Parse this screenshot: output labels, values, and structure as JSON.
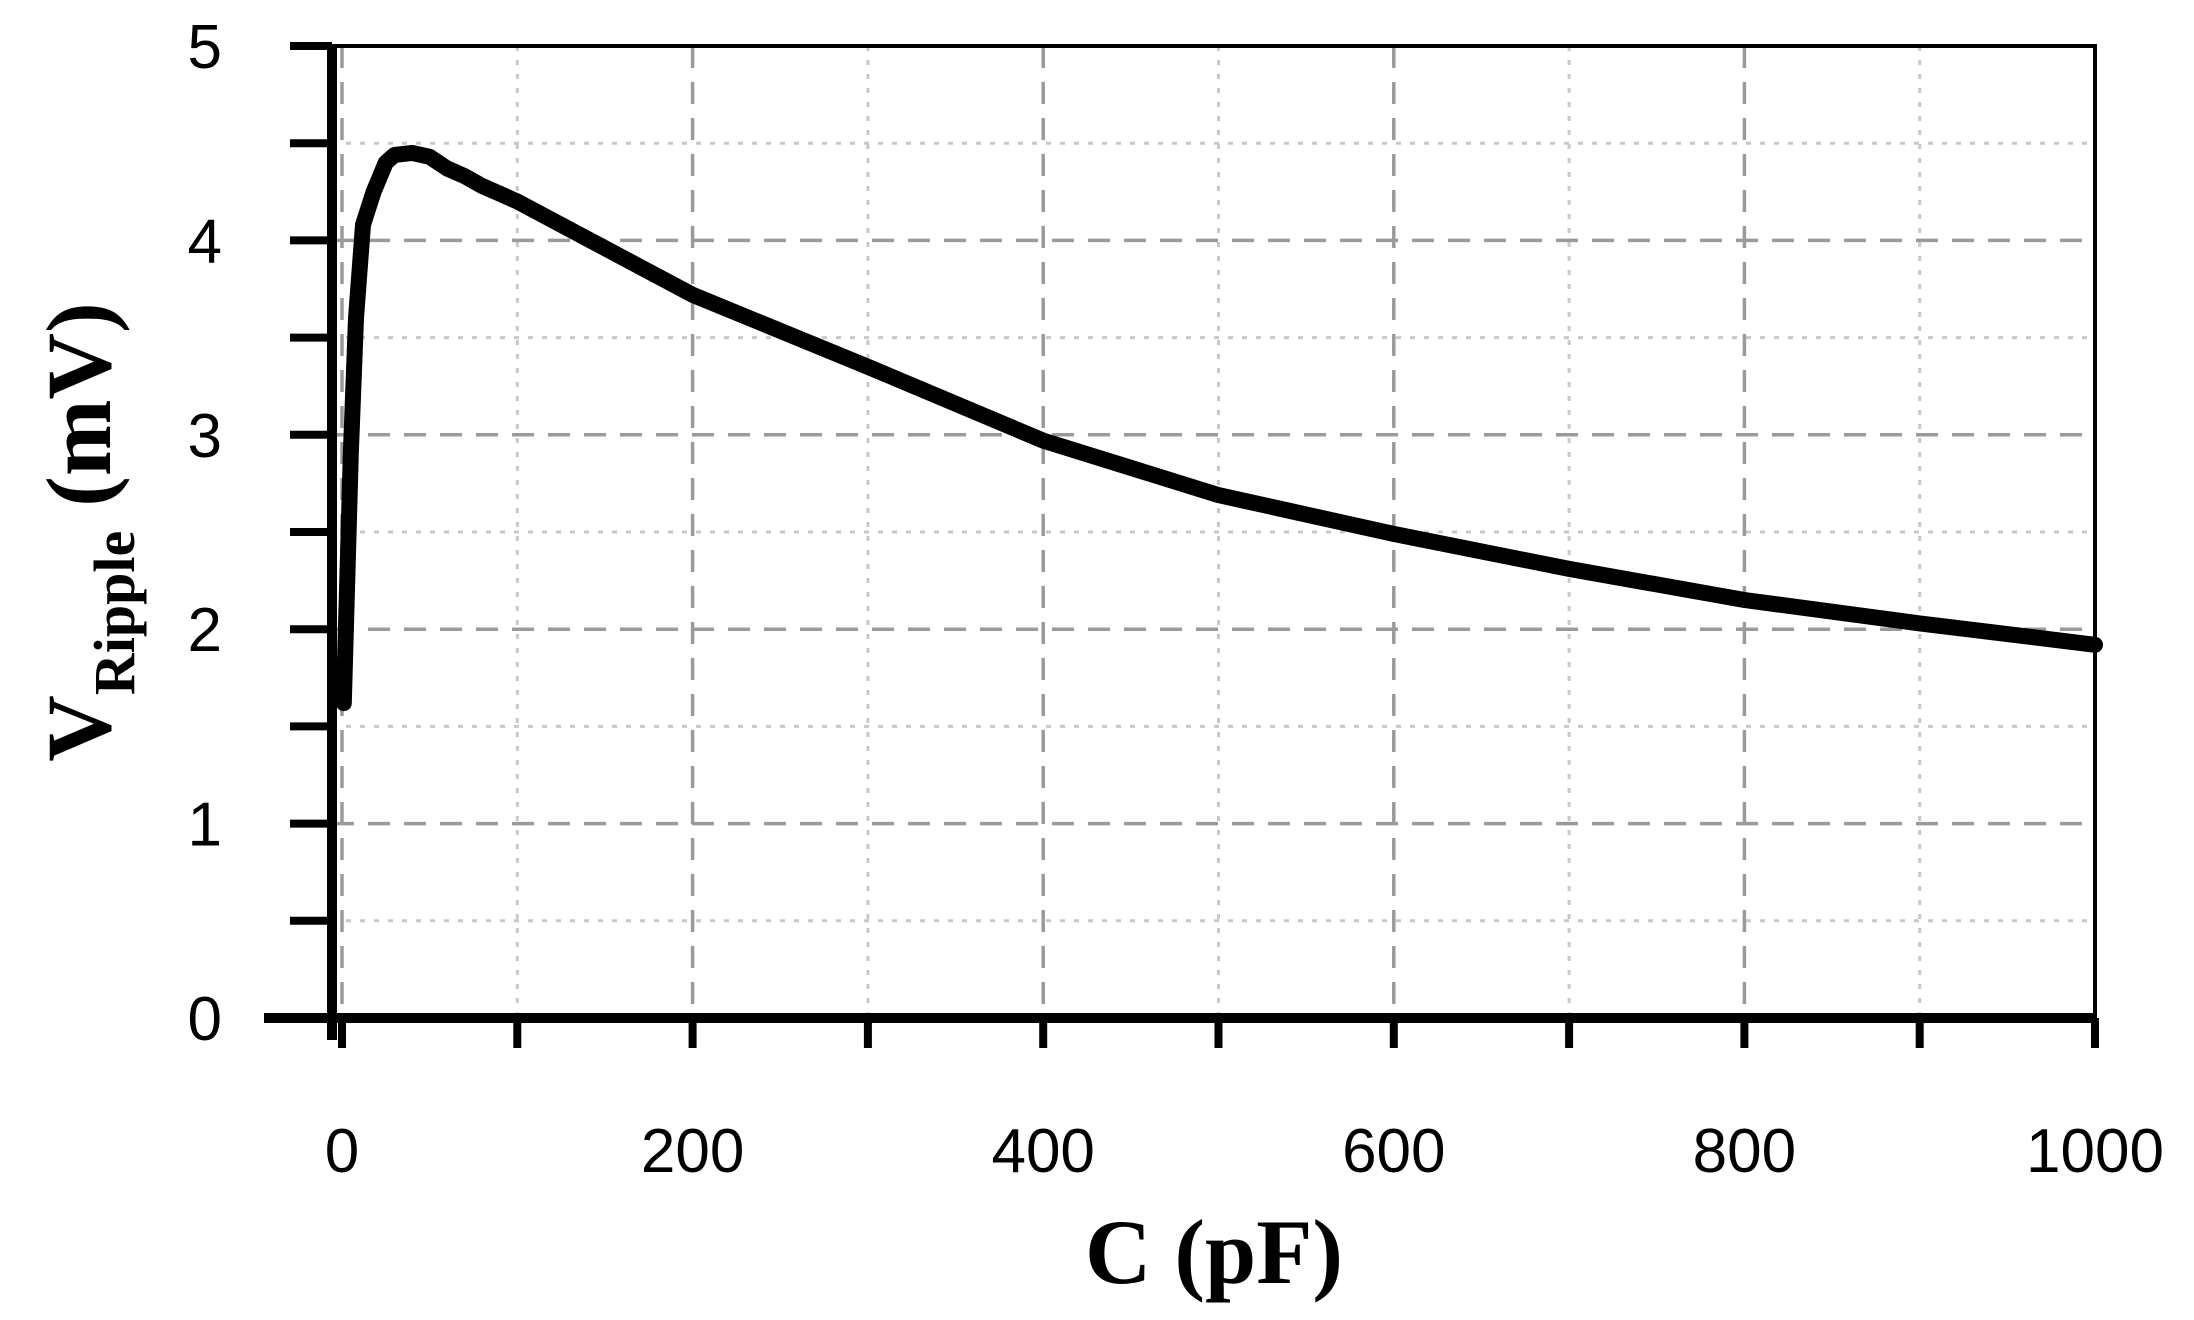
{
  "chart_data": {
    "type": "line",
    "xlabel": "C (pF)",
    "ylabel_main": "V",
    "ylabel_sub": "Ripple",
    "ylabel_unit": "(mV)",
    "xlim": [
      0,
      1000
    ],
    "ylim": [
      0,
      5
    ],
    "xticks": [
      0,
      200,
      400,
      600,
      800,
      1000
    ],
    "xtick_labels": [
      "0",
      "200",
      "400",
      "600",
      "800",
      "1000"
    ],
    "xminor": [
      100,
      300,
      500,
      700,
      900
    ],
    "yticks": [
      0,
      1,
      2,
      3,
      4,
      5
    ],
    "ytick_labels": [
      "0",
      "1",
      "2",
      "3",
      "4",
      "5"
    ],
    "yminor": [
      0.5,
      1.5,
      2.5,
      3.5,
      4.5
    ],
    "grid": true,
    "series": [
      {
        "color": "#000000",
        "x": [
          1,
          5,
          8,
          12,
          18,
          25,
          30,
          40,
          50,
          60,
          70,
          80,
          90,
          100,
          150,
          200,
          300,
          400,
          500,
          600,
          700,
          800,
          900,
          1000
        ],
        "y": [
          1.62,
          2.9,
          3.6,
          4.08,
          4.25,
          4.4,
          4.44,
          4.45,
          4.43,
          4.37,
          4.33,
          4.28,
          4.24,
          4.2,
          3.96,
          3.72,
          3.35,
          2.97,
          2.69,
          2.49,
          2.31,
          2.15,
          2.03,
          1.92
        ]
      }
    ]
  }
}
